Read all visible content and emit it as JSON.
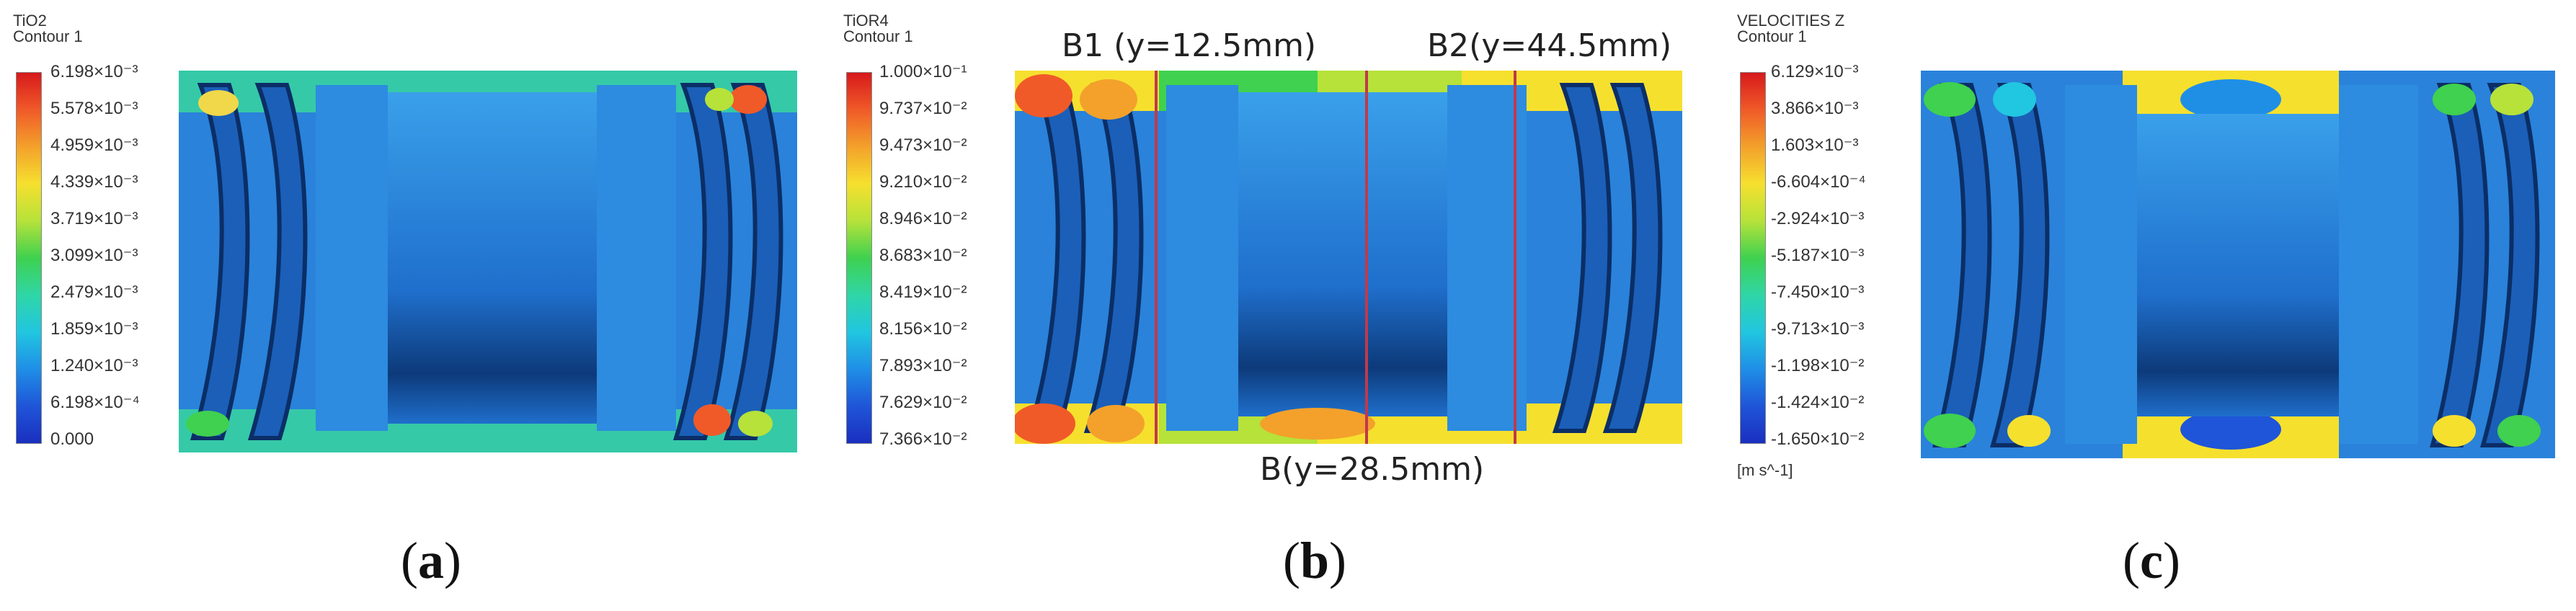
{
  "panels": [
    {
      "id": "a",
      "legend_title": "TiO2",
      "legend_subtitle": "Contour 1",
      "ticks": [
        "6.198×10⁻³",
        "5.578×10⁻³",
        "4.959×10⁻³",
        "4.339×10⁻³",
        "3.719×10⁻³",
        "3.099×10⁻³",
        "2.479×10⁻³",
        "1.859×10⁻³",
        "1.240×10⁻³",
        "6.198×10⁻⁴",
        "0.000"
      ],
      "unit": "",
      "caption_open": "(",
      "caption_letter": "a",
      "caption_close": ")"
    },
    {
      "id": "b",
      "legend_title": "TiOR4",
      "legend_subtitle": "Contour 1",
      "ticks": [
        "1.000×10⁻¹",
        "9.737×10⁻²",
        "9.473×10⁻²",
        "9.210×10⁻²",
        "8.946×10⁻²",
        "8.683×10⁻²",
        "8.419×10⁻²",
        "8.156×10⁻²",
        "7.893×10⁻²",
        "7.629×10⁻²",
        "7.366×10⁻²"
      ],
      "unit": "",
      "caption_open": "(",
      "caption_letter": "b",
      "caption_close": ")",
      "annotations": {
        "b1": "B1 (y=12.5mm)",
        "b2": "B2(y=44.5mm)",
        "b": "B(y=28.5mm)"
      }
    },
    {
      "id": "c",
      "legend_title": "VELOCITIES Z",
      "legend_subtitle": "Contour 1",
      "ticks": [
        "6.129×10⁻³",
        "3.866×10⁻³",
        "1.603×10⁻³",
        "-6.604×10⁻⁴",
        "-2.924×10⁻³",
        "-5.187×10⁻³",
        "-7.450×10⁻³",
        "-9.713×10⁻³",
        "-1.198×10⁻²",
        "-1.424×10⁻²",
        "-1.650×10⁻²"
      ],
      "unit": "[m s^-1]",
      "caption_open": "(",
      "caption_letter": "c",
      "caption_close": ")"
    }
  ],
  "colors": {
    "colorbar_stops": [
      "#d7191c",
      "#f05a28",
      "#f3a12b",
      "#f6e02e",
      "#b6e23a",
      "#3fd14f",
      "#2fd6a6",
      "#21c6e0",
      "#1f8fe6",
      "#1f55d8",
      "#1a2fbf"
    ],
    "background_blue": "#2a7fd6",
    "dark_blue": "#0d3a7a",
    "marker_red": "#c0394a"
  }
}
